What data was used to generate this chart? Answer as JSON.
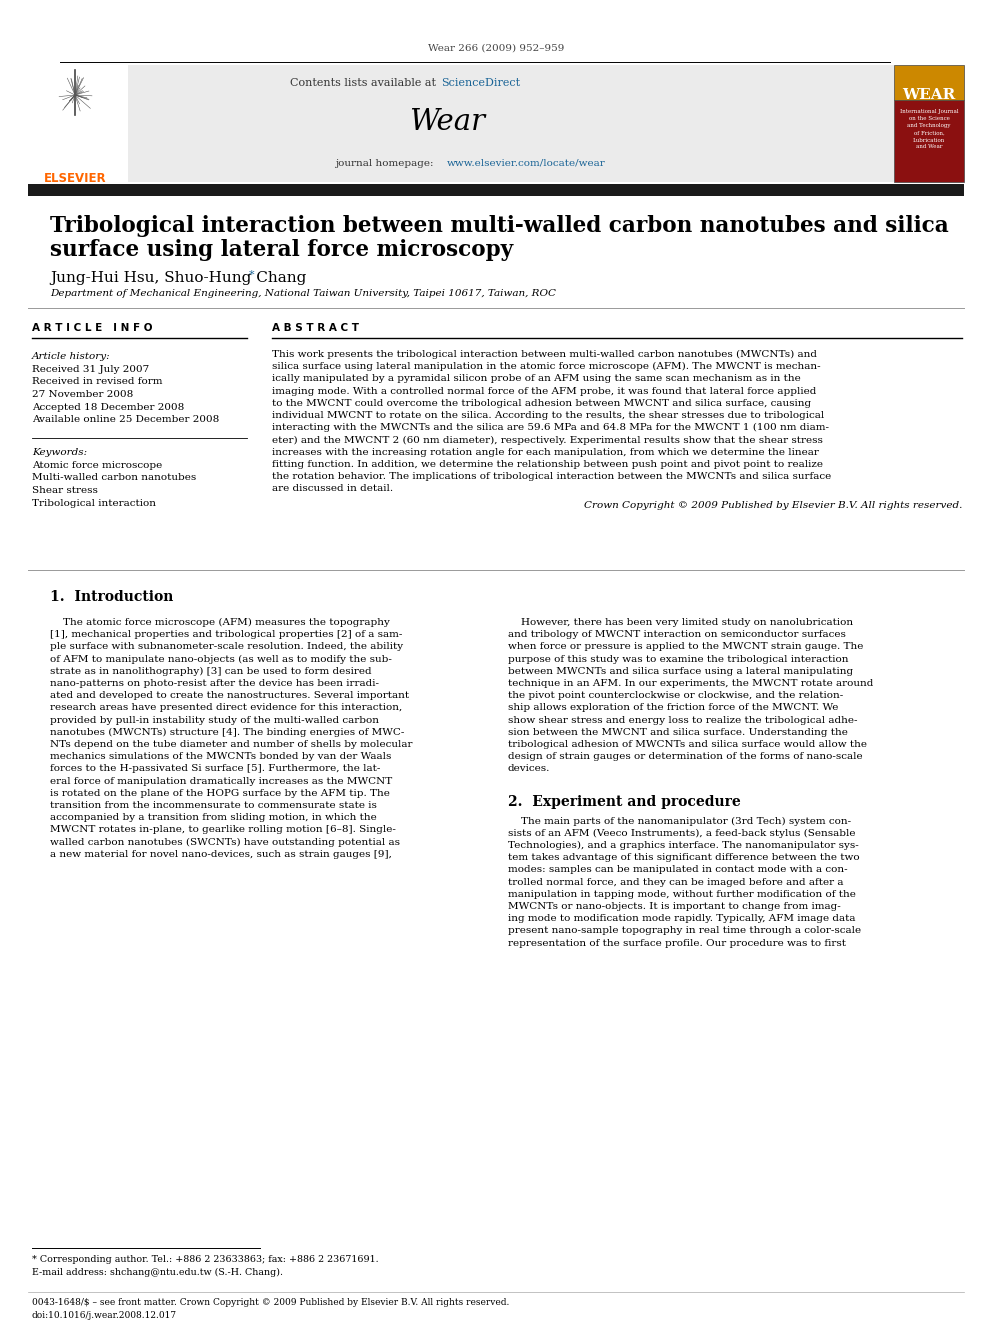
{
  "journal_citation": "Wear 266 (2009) 952–959",
  "contents_text": "Contents lists available at",
  "sciencedirect_text": "ScienceDirect",
  "journal_name": "Wear",
  "journal_homepage_text": "journal homepage: ",
  "journal_url": "www.elsevier.com/locate/wear",
  "title_line1": "Tribological interaction between multi-walled carbon nanotubes and silica",
  "title_line2": "surface using lateral force microscopy",
  "authors": "Jung-Hui Hsu, Shuo-Hung Chang",
  "affiliation": "Department of Mechanical Engineering, National Taiwan University, Taipei 10617, Taiwan, ROC",
  "article_info_header": "A R T I C L E   I N F O",
  "abstract_header": "A B S T R A C T",
  "article_history_label": "Article history:",
  "received_1": "Received 31 July 2007",
  "received_revised": "Received in revised form",
  "received_date": "27 November 2008",
  "accepted": "Accepted 18 December 2008",
  "available": "Available online 25 December 2008",
  "keywords_label": "Keywords:",
  "keyword1": "Atomic force microscope",
  "keyword2": "Multi-walled carbon nanotubes",
  "keyword3": "Shear stress",
  "keyword4": "Tribological interaction",
  "abstract_lines": [
    "This work presents the tribological interaction between multi-walled carbon nanotubes (MWCNTs) and",
    "silica surface using lateral manipulation in the atomic force microscope (AFM). The MWCNT is mechan-",
    "ically manipulated by a pyramidal silicon probe of an AFM using the same scan mechanism as in the",
    "imaging mode. With a controlled normal force of the AFM probe, it was found that lateral force applied",
    "to the MWCNT could overcome the tribological adhesion between MWCNT and silica surface, causing",
    "individual MWCNT to rotate on the silica. According to the results, the shear stresses due to tribological",
    "interacting with the MWCNTs and the silica are 59.6 MPa and 64.8 MPa for the MWCNT 1 (100 nm diam-",
    "eter) and the MWCNT 2 (60 nm diameter), respectively. Experimental results show that the shear stress",
    "increases with the increasing rotation angle for each manipulation, from which we determine the linear",
    "fitting function. In addition, we determine the relationship between push point and pivot point to realize",
    "the rotation behavior. The implications of tribological interaction between the MWCNTs and silica surface",
    "are discussed in detail."
  ],
  "copyright": "Crown Copyright © 2009 Published by Elsevier B.V. All rights reserved.",
  "intro_header": "1.  Introduction",
  "intro_col1_lines": [
    "    The atomic force microscope (AFM) measures the topography",
    "[1], mechanical properties and tribological properties [2] of a sam-",
    "ple surface with subnanometer-scale resolution. Indeed, the ability",
    "of AFM to manipulate nano-objects (as well as to modify the sub-",
    "strate as in nanolithography) [3] can be used to form desired",
    "nano-patterns on photo-resist after the device has been irradi-",
    "ated and developed to create the nanostructures. Several important",
    "research areas have presented direct evidence for this interaction,",
    "provided by pull-in instability study of the multi-walled carbon",
    "nanotubes (MWCNTs) structure [4]. The binding energies of MWC-",
    "NTs depend on the tube diameter and number of shells by molecular",
    "mechanics simulations of the MWCNTs bonded by van der Waals",
    "forces to the H-passivated Si surface [5]. Furthermore, the lat-",
    "eral force of manipulation dramatically increases as the MWCNT",
    "is rotated on the plane of the HOPG surface by the AFM tip. The",
    "transition from the incommensurate to commensurate state is",
    "accompanied by a transition from sliding motion, in which the",
    "MWCNT rotates in-plane, to gearlike rolling motion [6–8]. Single-",
    "walled carbon nanotubes (SWCNTs) have outstanding potential as",
    "a new material for novel nano-devices, such as strain gauges [9],"
  ],
  "intro_col2_lines": [
    "    However, there has been very limited study on nanolubrication",
    "and tribology of MWCNT interaction on semiconductor surfaces",
    "when force or pressure is applied to the MWCNT strain gauge. The",
    "purpose of this study was to examine the tribological interaction",
    "between MWCNTs and silica surface using a lateral manipulating",
    "technique in an AFM. In our experiments, the MWCNT rotate around",
    "the pivot point counterclockwise or clockwise, and the relation-",
    "ship allows exploration of the friction force of the MWCNT. We",
    "show shear stress and energy loss to realize the tribological adhe-",
    "sion between the MWCNT and silica surface. Understanding the",
    "tribological adhesion of MWCNTs and silica surface would allow the",
    "design of strain gauges or determination of the forms of nano-scale",
    "devices."
  ],
  "exp_header": "2.  Experiment and procedure",
  "exp_col2_lines": [
    "    The main parts of the nanomanipulator (3rd Tech) system con-",
    "sists of an AFM (Veeco Instruments), a feed-back stylus (Sensable",
    "Technologies), and a graphics interface. The nanomanipulator sys-",
    "tem takes advantage of this significant difference between the two",
    "modes: samples can be manipulated in contact mode with a con-",
    "trolled normal force, and they can be imaged before and after a",
    "manipulation in tapping mode, without further modification of the",
    "MWCNTs or nano-objects. It is important to change from imag-",
    "ing mode to modification mode rapidly. Typically, AFM image data",
    "present nano-sample topography in real time through a color-scale",
    "representation of the surface profile. Our procedure was to first"
  ],
  "footnote_star": "* Corresponding author. Tel.: +886 2 23633863; fax: +886 2 23671691.",
  "footnote_email": "E-mail address: shchang@ntu.edu.tw (S.-H. Chang).",
  "footer_text": "0043-1648/$ – see front matter. Crown Copyright © 2009 Published by Elsevier B.V. All rights reserved.",
  "footer_doi": "doi:10.1016/j.wear.2008.12.017",
  "header_bg": "#ebebeb",
  "black_bar_color": "#1a1a1a",
  "sciencedirect_color": "#1a6496",
  "url_color": "#1a6496",
  "page_bg": "#ffffff",
  "text_color": "#000000"
}
